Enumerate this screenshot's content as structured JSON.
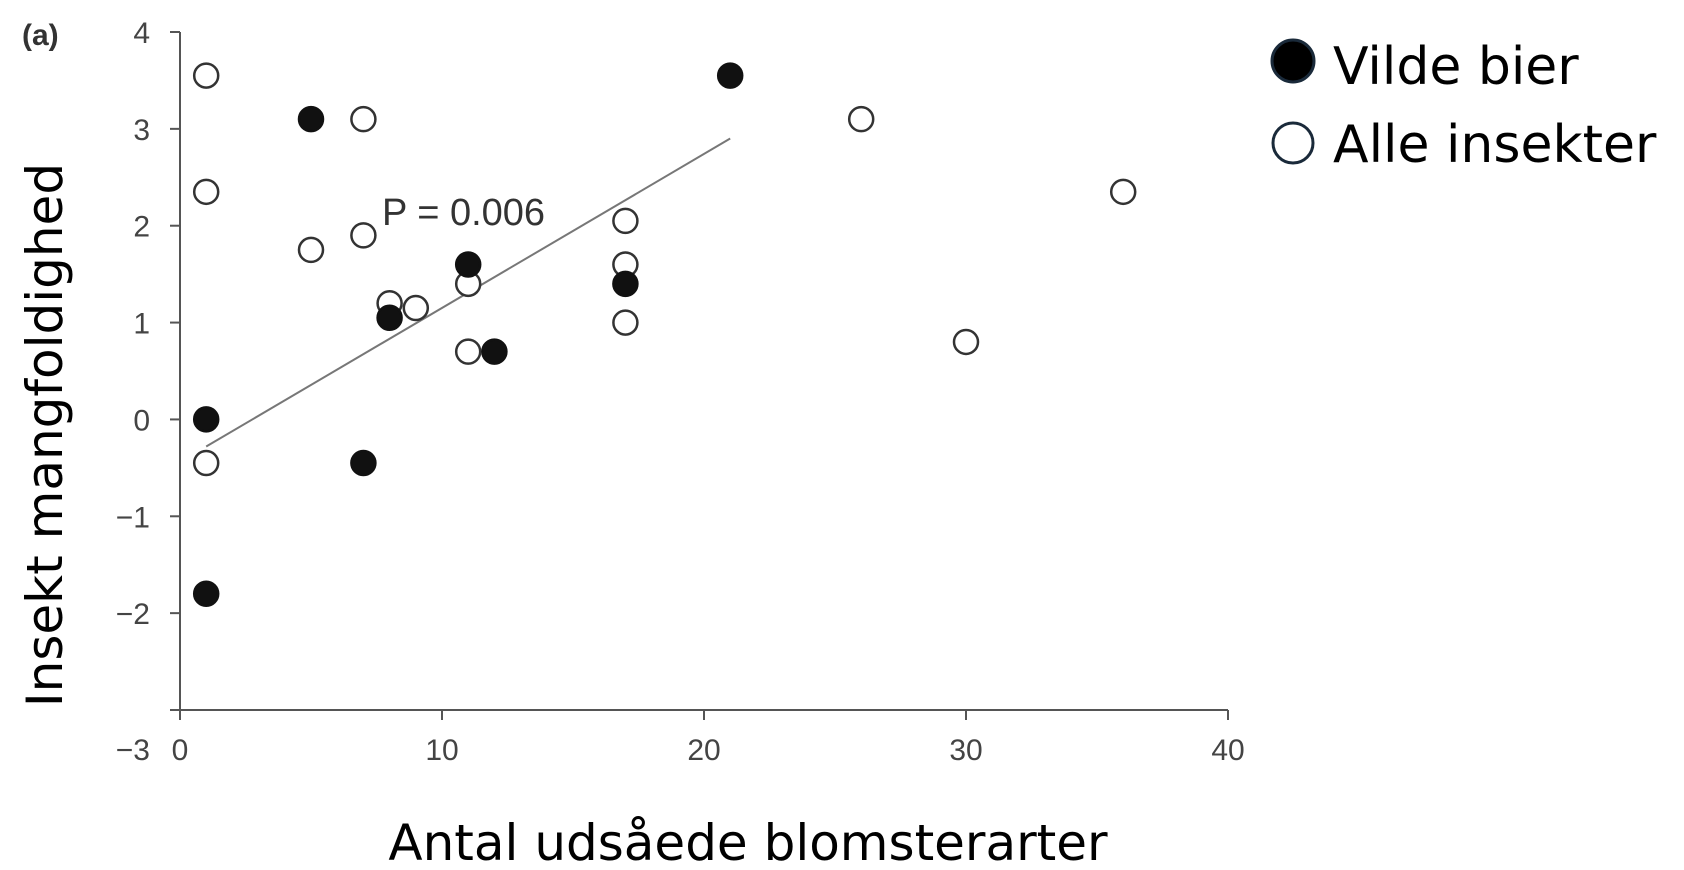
{
  "chart_data": {
    "type": "scatter",
    "panel_label": "(a)",
    "xlabel": "Antal udsåede blomsterarter",
    "ylabel": "Insekt mangfoldighed",
    "xlim": [
      0,
      40
    ],
    "ylim": [
      -3,
      4
    ],
    "x_ticks": [
      0,
      10,
      20,
      30,
      40
    ],
    "y_ticks": [
      -3,
      -2,
      -1,
      0,
      1,
      2,
      3,
      4
    ],
    "grid": false,
    "legend_position": "top-right",
    "annotation": "P = 0.006",
    "series": [
      {
        "name": "Vilde bier",
        "marker": "filled-circle",
        "color": "#111111",
        "points": [
          [
            1,
            0.0
          ],
          [
            1,
            -1.8
          ],
          [
            5,
            3.1
          ],
          [
            7,
            -0.45
          ],
          [
            8,
            1.05
          ],
          [
            11,
            1.6
          ],
          [
            12,
            0.7
          ],
          [
            17,
            1.4
          ],
          [
            21,
            3.55
          ]
        ]
      },
      {
        "name": "Alle insekter",
        "marker": "open-circle",
        "color": "#333333",
        "points": [
          [
            1,
            3.55
          ],
          [
            1,
            2.35
          ],
          [
            1,
            -0.45
          ],
          [
            5,
            1.75
          ],
          [
            7,
            3.1
          ],
          [
            7,
            1.9
          ],
          [
            8,
            1.2
          ],
          [
            9,
            1.15
          ],
          [
            11,
            1.4
          ],
          [
            11,
            0.7
          ],
          [
            17,
            2.05
          ],
          [
            17,
            1.6
          ],
          [
            17,
            1.0
          ],
          [
            26,
            3.1
          ],
          [
            30,
            0.8
          ],
          [
            36,
            2.35
          ]
        ]
      }
    ],
    "regression_line": {
      "x": [
        1,
        21
      ],
      "y": [
        -0.28,
        2.9
      ]
    }
  }
}
